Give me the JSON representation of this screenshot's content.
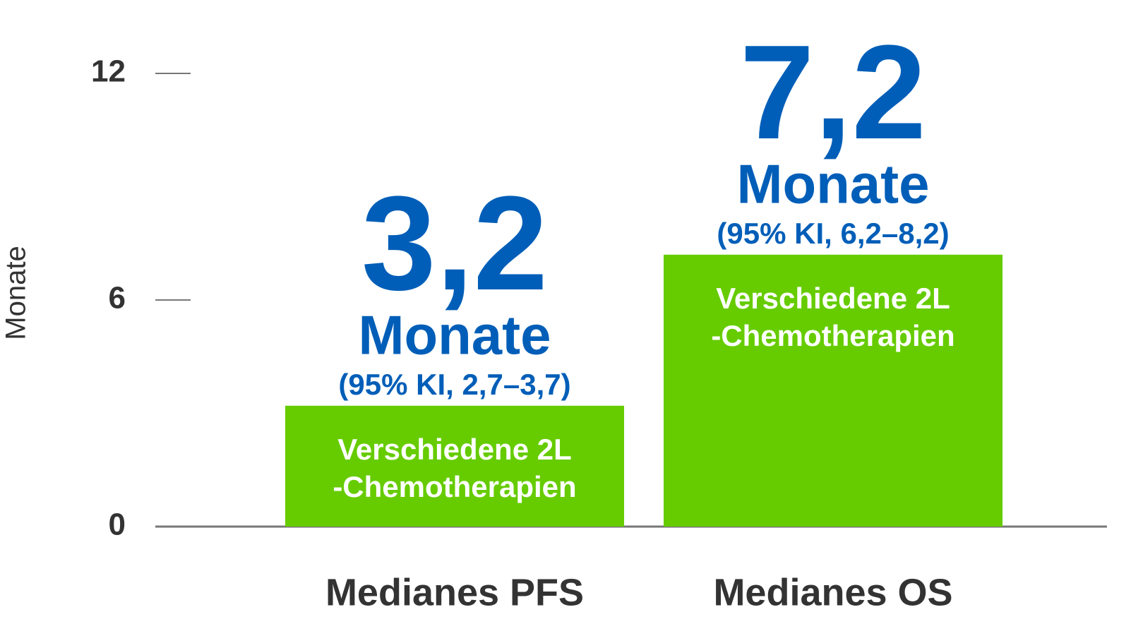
{
  "chart_data": {
    "type": "bar",
    "y_label": "Monate",
    "categories": [
      "Medianes PFS",
      "Medianes OS"
    ],
    "values": [
      3.2,
      7.2
    ],
    "value_labels": [
      "3,2",
      "7,2"
    ],
    "value_unit": "Monate",
    "ci_labels": [
      "(95% KI, 2,7–3,7)",
      "(95% KI, 6,2–8,2)"
    ],
    "bar_labels": [
      [
        "Verschiedene 2L",
        "-Chemotherapien"
      ],
      [
        "Verschiedene 2L",
        "-Chemotherapien"
      ]
    ],
    "color": "#66cc00",
    "label_color": "#005eb8",
    "ylim": [
      0,
      12
    ],
    "yticks": [
      0,
      6,
      12
    ]
  }
}
